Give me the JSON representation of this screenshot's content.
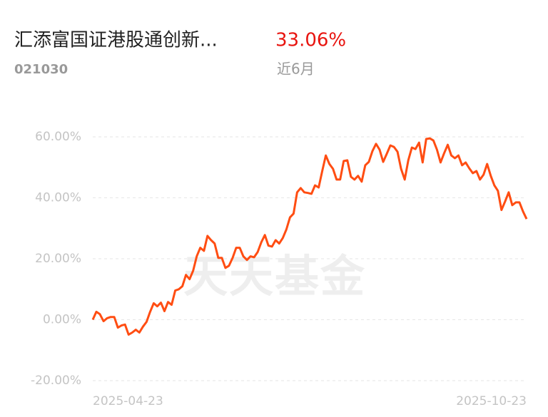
{
  "header": {
    "title": "汇添富国证港股通创新...",
    "return": "33.06%",
    "code": "021030",
    "period": "近6月"
  },
  "chart_data": {
    "type": "line",
    "watermark": "天天基金",
    "categories": [
      "2025-04-23",
      null,
      null,
      null,
      null,
      null,
      null,
      null,
      null,
      null,
      null,
      null,
      null,
      null,
      null,
      null,
      null,
      null,
      null,
      null,
      null,
      null,
      null,
      null,
      null,
      null,
      null,
      null,
      null,
      null,
      null,
      null,
      null,
      null,
      null,
      null,
      null,
      null,
      null,
      null,
      null,
      null,
      null,
      null,
      null,
      null,
      null,
      null,
      null,
      null,
      null,
      null,
      null,
      null,
      null,
      null,
      null,
      null,
      null,
      null,
      null,
      null,
      null,
      null,
      null,
      null,
      null,
      null,
      null,
      null,
      null,
      null,
      null,
      null,
      null,
      null,
      null,
      null,
      null,
      null,
      null,
      null,
      null,
      null,
      null,
      null,
      null,
      null,
      null,
      null,
      null,
      null,
      null,
      null,
      null,
      null,
      null,
      null,
      null,
      null,
      null,
      null,
      null,
      null,
      null,
      null,
      null,
      null,
      null,
      null,
      null,
      null,
      null,
      null,
      null,
      null,
      null,
      null,
      null,
      null,
      null,
      "2025-10-23"
    ],
    "series": [
      {
        "color": "#ff4d12",
        "values": [
          0,
          2.6,
          1.8,
          -0.5,
          0.5,
          0.9,
          0.9,
          -2.6,
          -1.9,
          -1.6,
          -4.9,
          -4.2,
          -3.3,
          -4.2,
          -2.3,
          -0.7,
          2.6,
          5.4,
          4.4,
          5.6,
          2.8,
          5.8,
          4.9,
          9.6,
          10.0,
          11.0,
          14.7,
          13.3,
          16.1,
          20.8,
          23.6,
          22.6,
          27.5,
          26.1,
          25.0,
          20.3,
          20.3,
          17.0,
          17.7,
          20.3,
          23.6,
          23.6,
          20.8,
          19.6,
          20.8,
          20.5,
          22.2,
          25.4,
          27.8,
          24.3,
          24.0,
          26.1,
          25.0,
          26.8,
          29.6,
          33.6,
          34.8,
          41.8,
          43.2,
          41.8,
          41.6,
          41.3,
          44.1,
          43.4,
          48.8,
          53.9,
          51.1,
          49.5,
          46.0,
          46.0,
          52.1,
          52.3,
          46.9,
          46.0,
          47.2,
          45.3,
          50.7,
          51.8,
          55.3,
          57.7,
          55.8,
          51.8,
          54.4,
          57.2,
          56.7,
          55.1,
          49.5,
          46.0,
          52.3,
          56.5,
          56.0,
          58.1,
          51.6,
          59.3,
          59.5,
          58.8,
          55.8,
          51.6,
          54.6,
          57.4,
          53.9,
          53.0,
          53.9,
          50.7,
          51.6,
          49.7,
          48.1,
          48.8,
          46.0,
          47.6,
          51.1,
          47.2,
          44.1,
          42.3,
          36.0,
          38.8,
          41.8,
          37.6,
          38.5,
          38.5,
          35.5,
          33.06
        ]
      }
    ],
    "ylim": [
      -20,
      60
    ],
    "yticks": [
      {
        "value": 60,
        "label": "60.00%"
      },
      {
        "value": 40,
        "label": "40.00%"
      },
      {
        "value": 20,
        "label": "20.00%"
      },
      {
        "value": 0,
        "label": "0.00%"
      },
      {
        "value": -20,
        "label": "-20.00%"
      }
    ],
    "grid": true
  }
}
